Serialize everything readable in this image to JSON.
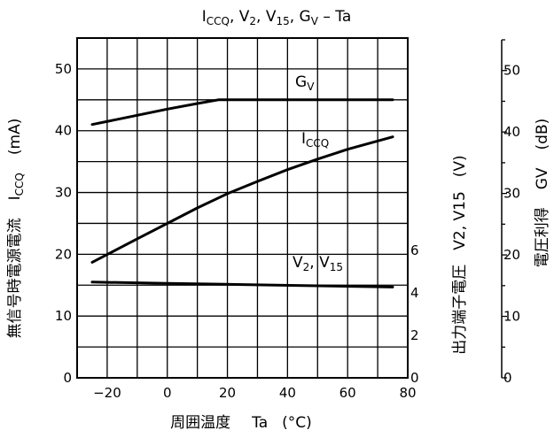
{
  "chart_data": {
    "type": "line",
    "title": {
      "i": "I",
      "i_sub": "CCQ",
      "rest1": ", V",
      "v2_sub": "2",
      "rest2": ", V",
      "v15_sub": "15",
      "rest3": ", G",
      "gv_sub": "V",
      "rest4": " – Ta"
    },
    "xlabel": {
      "jp": "周囲温度",
      "sym": "Ta",
      "unit": "(°C)"
    },
    "x_ticks": [
      "−20",
      "0",
      "20",
      "40",
      "60",
      "80"
    ],
    "xlim": [
      -30,
      80
    ],
    "left_axis": {
      "label_jp": "無信号時電源電流",
      "label_sym": "I",
      "label_sub": "CCQ",
      "label_unit": "(mA)",
      "ylim": [
        0,
        55
      ],
      "ticks": [
        "0",
        "10",
        "20",
        "30",
        "40",
        "50"
      ]
    },
    "mid_axis": {
      "label_jp": "出力端子電圧",
      "label_sym": "V2, V15",
      "label_unit": "(V)",
      "ylim": [
        0,
        16
      ],
      "ticks": [
        "0",
        "2",
        "4",
        "6"
      ]
    },
    "right_axis": {
      "label_jp": "電圧利得",
      "label_sym": "GV",
      "label_unit": "(dB)",
      "ylim": [
        0,
        55
      ],
      "ticks": [
        "0",
        "10",
        "20",
        "30",
        "40",
        "50"
      ]
    },
    "series": [
      {
        "name": "ICCQ",
        "label_main": "I",
        "label_sub": "CCQ",
        "x": [
          -25,
          -10,
          0,
          10,
          20,
          30,
          40,
          50,
          60,
          75
        ],
        "y": [
          18.7,
          22.5,
          25,
          27.5,
          29.8,
          31.8,
          33.7,
          35.4,
          37,
          39
        ]
      },
      {
        "name": "GV",
        "label_main": "G",
        "label_sub": "V",
        "x": [
          -25,
          -10,
          0,
          10,
          17,
          30,
          40,
          50,
          60,
          75
        ],
        "y": [
          41,
          42.5,
          43.5,
          44.4,
          45,
          45,
          45,
          45,
          45,
          45
        ]
      },
      {
        "name": "V2, V15",
        "label_main": "V",
        "label_sub": "2",
        "label_mid": ", V",
        "label_sub2": "15",
        "x": [
          -25,
          0,
          25,
          50,
          75
        ],
        "y": [
          15.5,
          15.3,
          15.1,
          14.9,
          14.7
        ]
      }
    ],
    "grid": true
  }
}
